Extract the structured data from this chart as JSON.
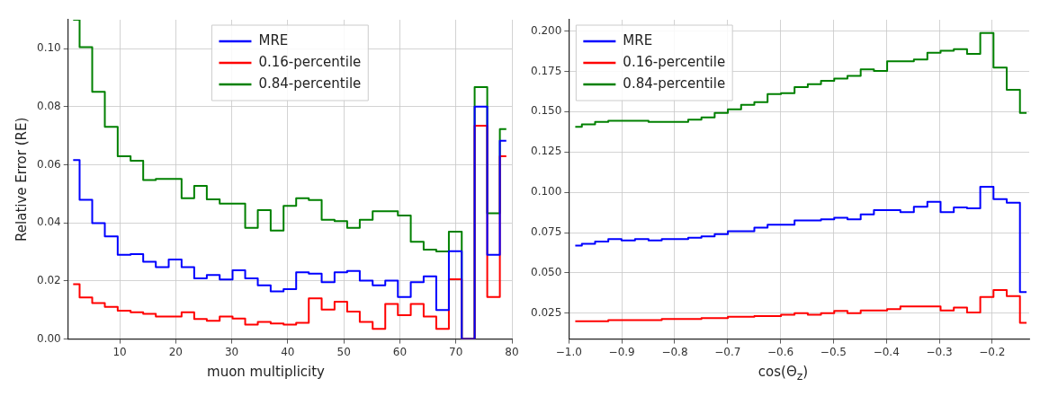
{
  "chart_data": [
    {
      "type": "step",
      "xlabel": "muon multiplicity",
      "ylabel": "Relative Error (RE)",
      "x": [
        1.7,
        4.0,
        6.2,
        8.5,
        10.8,
        13.1,
        15.3,
        17.6,
        19.9,
        22.2,
        24.4,
        26.7,
        29.0,
        31.3,
        33.5,
        35.8,
        38.1,
        40.4,
        42.6,
        44.9,
        47.2,
        49.5,
        51.7,
        54.0,
        56.3,
        58.5,
        60.8,
        63.1,
        65.4,
        67.6,
        69.9,
        72.2,
        74.5,
        76.7,
        79.0
      ],
      "series": [
        {
          "name": "MRE",
          "color": "#0000ff",
          "values": [
            0.0617,
            0.048,
            0.0399,
            0.0354,
            0.029,
            0.0293,
            0.0266,
            0.0248,
            0.0274,
            0.0248,
            0.0209,
            0.0221,
            0.0205,
            0.0237,
            0.0209,
            0.0185,
            0.0164,
            0.0172,
            0.023,
            0.0225,
            0.0196,
            0.023,
            0.0235,
            0.0201,
            0.0185,
            0.0201,
            0.0145,
            0.0196,
            0.0216,
            0.01,
            0.0303,
            0,
            0.0801,
            0.029,
            0.0683
          ]
        },
        {
          "name": "0.16-percentile",
          "color": "#ff0000",
          "values": [
            0.0189,
            0.0143,
            0.0124,
            0.0111,
            0.0098,
            0.0092,
            0.0087,
            0.0078,
            0.0078,
            0.0092,
            0.0069,
            0.0063,
            0.0078,
            0.0071,
            0.005,
            0.0059,
            0.0054,
            0.005,
            0.0056,
            0.014,
            0.0102,
            0.0129,
            0.0095,
            0.0059,
            0.0035,
            0.0121,
            0.0082,
            0.0121,
            0.0078,
            0.0035,
            0.0206,
            0,
            0.0735,
            0.0145,
            0.063
          ]
        },
        {
          "name": "0.84-percentile",
          "color": "#008000",
          "values": [
            0.11,
            0.1006,
            0.0852,
            0.0731,
            0.063,
            0.0614,
            0.0548,
            0.0552,
            0.0552,
            0.0485,
            0.0528,
            0.0481,
            0.0467,
            0.0467,
            0.0383,
            0.0444,
            0.0374,
            0.0459,
            0.0485,
            0.0479,
            0.0411,
            0.0406,
            0.0383,
            0.0411,
            0.044,
            0.044,
            0.0426,
            0.0335,
            0.0308,
            0.0302,
            0.037,
            0,
            0.0868,
            0.0433,
            0.0723
          ]
        }
      ],
      "xlim": [
        0.8,
        80
      ],
      "xticks": [
        10,
        20,
        30,
        40,
        50,
        60,
        70,
        80
      ],
      "ylim": [
        0,
        0.11
      ],
      "yticks": [
        {
          "value": 0,
          "label": "0.00"
        },
        {
          "value": 0.02,
          "label": "0.02"
        },
        {
          "value": 0.04,
          "label": "0.04"
        },
        {
          "value": 0.06,
          "label": "0.06"
        },
        {
          "value": 0.08,
          "label": "0.08"
        },
        {
          "value": 0.1,
          "label": "0.10"
        }
      ],
      "grid": true,
      "legend": "top"
    },
    {
      "type": "step",
      "xlabel": "cos(Θ$_{z}$)",
      "x": [
        -0.988,
        -0.963,
        -0.938,
        -0.913,
        -0.888,
        -0.862,
        -0.837,
        -0.812,
        -0.787,
        -0.762,
        -0.737,
        -0.712,
        -0.687,
        -0.662,
        -0.637,
        -0.612,
        -0.586,
        -0.561,
        -0.536,
        -0.511,
        -0.486,
        -0.461,
        -0.436,
        -0.411,
        -0.386,
        -0.361,
        -0.335,
        -0.31,
        -0.285,
        -0.26,
        -0.235,
        -0.21,
        -0.185,
        -0.16,
        -0.135
      ],
      "series": [
        {
          "name": "MRE",
          "color": "#0000ff",
          "values": [
            0.067,
            0.0681,
            0.0694,
            0.071,
            0.0701,
            0.071,
            0.0701,
            0.071,
            0.071,
            0.0719,
            0.0727,
            0.0741,
            0.0759,
            0.0759,
            0.0781,
            0.0799,
            0.0799,
            0.0825,
            0.0825,
            0.0833,
            0.0842,
            0.0833,
            0.0863,
            0.0889,
            0.0889,
            0.0877,
            0.0911,
            0.0941,
            0.0877,
            0.0906,
            0.0901,
            0.1035,
            0.0958,
            0.0936,
            0.0382
          ]
        },
        {
          "name": "0.16-percentile",
          "color": "#ff0000",
          "values": [
            0.02,
            0.02,
            0.02,
            0.0207,
            0.0207,
            0.0207,
            0.0207,
            0.0215,
            0.0215,
            0.0215,
            0.022,
            0.022,
            0.0229,
            0.0229,
            0.0233,
            0.0233,
            0.0241,
            0.025,
            0.0241,
            0.025,
            0.0264,
            0.025,
            0.0267,
            0.0267,
            0.0276,
            0.0293,
            0.0293,
            0.0293,
            0.0267,
            0.0286,
            0.0255,
            0.0351,
            0.0394,
            0.0356,
            0.0191
          ]
        },
        {
          "name": "0.84-percentile",
          "color": "#008000",
          "values": [
            0.1406,
            0.1422,
            0.1437,
            0.1444,
            0.1444,
            0.1444,
            0.1437,
            0.1437,
            0.1437,
            0.145,
            0.1465,
            0.1493,
            0.1514,
            0.1543,
            0.1559,
            0.1609,
            0.1615,
            0.1653,
            0.167,
            0.1691,
            0.1705,
            0.1722,
            0.1762,
            0.1753,
            0.1813,
            0.1813,
            0.1823,
            0.1866,
            0.1878,
            0.1887,
            0.1858,
            0.1988,
            0.1774,
            0.1635,
            0.1493
          ]
        }
      ],
      "xlim": [
        -1.0,
        -0.13
      ],
      "xticks": [
        {
          "value": -1.0,
          "label": "−1.0"
        },
        {
          "value": -0.9,
          "label": "−0.9"
        },
        {
          "value": -0.8,
          "label": "−0.8"
        },
        {
          "value": -0.7,
          "label": "−0.7"
        },
        {
          "value": -0.6,
          "label": "−0.6"
        },
        {
          "value": -0.5,
          "label": "−0.5"
        },
        {
          "value": -0.4,
          "label": "−0.4"
        },
        {
          "value": -0.3,
          "label": "−0.3"
        },
        {
          "value": -0.2,
          "label": "−0.2"
        }
      ],
      "ylim": [
        0.009,
        0.207
      ],
      "yticks": [
        {
          "value": 0.025,
          "label": "0.025"
        },
        {
          "value": 0.05,
          "label": "0.050"
        },
        {
          "value": 0.075,
          "label": "0.075"
        },
        {
          "value": 0.1,
          "label": "0.100"
        },
        {
          "value": 0.125,
          "label": "0.125"
        },
        {
          "value": 0.15,
          "label": "0.150"
        },
        {
          "value": 0.175,
          "label": "0.175"
        },
        {
          "value": 0.2,
          "label": "0.200"
        }
      ],
      "grid": true,
      "legend": "top left"
    }
  ]
}
